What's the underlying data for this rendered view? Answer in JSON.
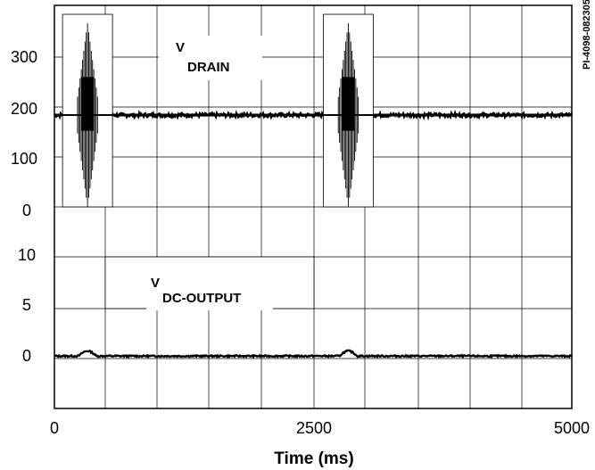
{
  "chart_data": {
    "type": "line",
    "xlabel": "Time (ms)",
    "x_ticks": [
      "0",
      "2500",
      "5000"
    ],
    "xlim": [
      0,
      5000
    ],
    "grid": true,
    "figure_id": "PI-4098-082305",
    "panels": [
      {
        "name": "top",
        "y_ticks": [
          "300",
          "200",
          "100",
          "0"
        ],
        "ylim": [
          -50,
          400
        ],
        "label_main": "V",
        "label_sub": "DRAIN",
        "series": [
          {
            "name": "V DRAIN",
            "baseline": 155,
            "ripple": 10,
            "bursts": [
              {
                "x": 320,
                "min": -50,
                "max": 360
              },
              {
                "x": 2840,
                "min": -50,
                "max": 360
              }
            ]
          }
        ]
      },
      {
        "name": "bottom",
        "y_ticks": [
          "10",
          "5",
          "0"
        ],
        "ylim": [
          -5,
          15
        ],
        "label_main": "V",
        "label_sub": "DC-OUTPUT",
        "series": [
          {
            "name": "V DC-OUTPUT",
            "baseline": 0.2,
            "ripple": 0.15,
            "bumps": [
              {
                "x": 320,
                "height": 0.5
              },
              {
                "x": 2840,
                "height": 0.5
              }
            ]
          }
        ]
      }
    ]
  }
}
